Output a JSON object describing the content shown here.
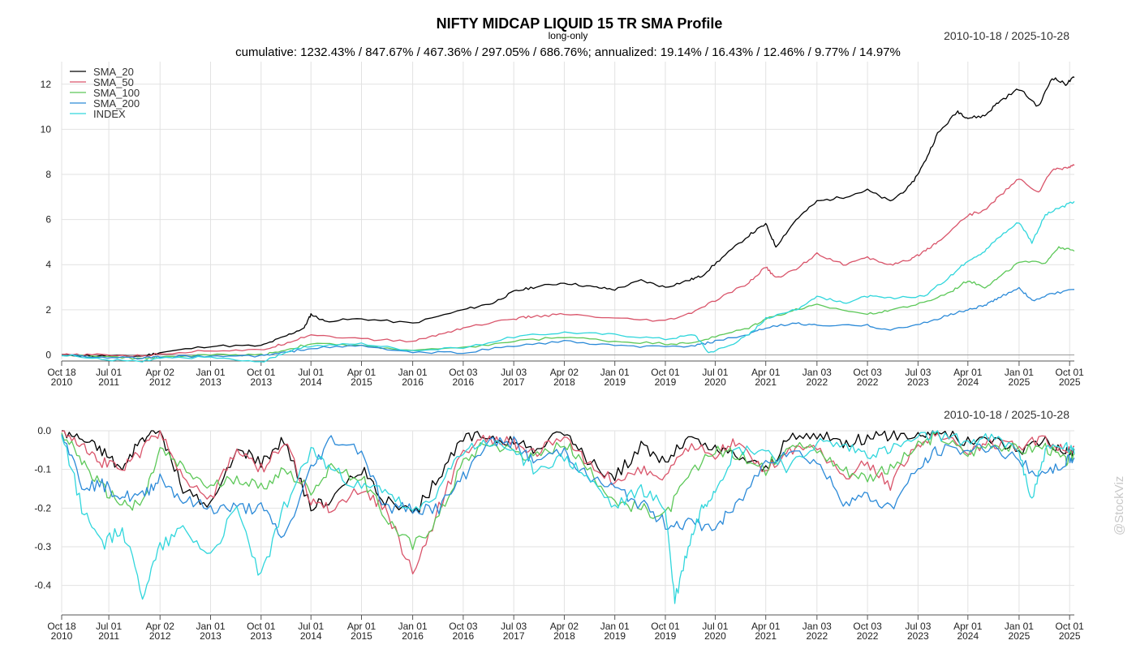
{
  "header": {
    "title": "NIFTY MIDCAP LIQUID 15 TR SMA Profile",
    "subtitle": "long-only",
    "stats": "cumulative: 1232.43% / 847.67% / 467.36% / 297.05% / 686.76%; annualized: 19.14% / 16.43% / 12.46% / 9.77% / 14.97%",
    "date_range_top": "2010-10-18 / 2025-10-28",
    "date_range_bottom": "2010-10-18 / 2025-10-28",
    "watermark": "@StockViz"
  },
  "x_ticks": [
    {
      "l1": "Oct 18",
      "l2": "2010",
      "t": 0.0
    },
    {
      "l1": "Jul 01",
      "l2": "2011",
      "t": 0.7
    },
    {
      "l1": "Apr 02",
      "l2": "2012",
      "t": 1.46
    },
    {
      "l1": "Jan 01",
      "l2": "2013",
      "t": 2.21
    },
    {
      "l1": "Oct 01",
      "l2": "2013",
      "t": 2.96
    },
    {
      "l1": "Jul 01",
      "l2": "2014",
      "t": 3.7
    },
    {
      "l1": "Apr 01",
      "l2": "2015",
      "t": 4.45
    },
    {
      "l1": "Jan 01",
      "l2": "2016",
      "t": 5.21
    },
    {
      "l1": "Oct 03",
      "l2": "2016",
      "t": 5.96
    },
    {
      "l1": "Jul 03",
      "l2": "2017",
      "t": 6.71
    },
    {
      "l1": "Apr 02",
      "l2": "2018",
      "t": 7.46
    },
    {
      "l1": "Jan 01",
      "l2": "2019",
      "t": 8.21
    },
    {
      "l1": "Oct 01",
      "l2": "2019",
      "t": 8.96
    },
    {
      "l1": "Jul 01",
      "l2": "2020",
      "t": 9.7
    },
    {
      "l1": "Apr 01",
      "l2": "2021",
      "t": 10.45
    },
    {
      "l1": "Jan 03",
      "l2": "2022",
      "t": 11.21
    },
    {
      "l1": "Oct 03",
      "l2": "2022",
      "t": 11.96
    },
    {
      "l1": "Jul 03",
      "l2": "2023",
      "t": 12.71
    },
    {
      "l1": "Apr 01",
      "l2": "2024",
      "t": 13.45
    },
    {
      "l1": "Jan 01",
      "l2": "2025",
      "t": 14.21
    },
    {
      "l1": "Oct 01",
      "l2": "2025",
      "t": 14.96
    }
  ],
  "chart_data": [
    {
      "type": "line",
      "title": "NIFTY MIDCAP LIQUID 15 TR SMA Profile",
      "subtitle": "long-only",
      "x_unit": "years since 2010-10-18",
      "ylim": [
        -0.2,
        13
      ],
      "y_ticks": [
        0,
        2,
        4,
        6,
        8,
        10,
        12
      ],
      "grid": true,
      "legend_position": "top-left",
      "series": [
        {
          "name": "SMA_20",
          "color": "#000000",
          "x": [
            0,
            0.6,
            1.2,
            1.46,
            2.21,
            2.96,
            3.3,
            3.6,
            3.7,
            3.9,
            4.45,
            5.21,
            5.96,
            6.4,
            6.71,
            7.0,
            7.46,
            7.9,
            8.21,
            8.6,
            8.96,
            9.3,
            9.5,
            9.8,
            10.2,
            10.45,
            10.6,
            10.9,
            11.21,
            11.6,
            11.96,
            12.3,
            12.6,
            12.8,
            13.0,
            13.3,
            13.45,
            13.7,
            13.9,
            14.21,
            14.5,
            14.7,
            14.9,
            15.03
          ],
          "y": [
            0,
            -0.05,
            -0.05,
            0.1,
            0.4,
            0.4,
            0.8,
            1.2,
            1.8,
            1.5,
            1.6,
            1.4,
            2.0,
            2.3,
            2.8,
            3.0,
            3.2,
            3.0,
            2.9,
            3.3,
            3.0,
            3.3,
            3.5,
            4.3,
            5.3,
            5.8,
            4.8,
            6.0,
            6.8,
            7.0,
            7.3,
            6.8,
            7.5,
            8.5,
            9.8,
            10.8,
            10.5,
            10.6,
            11.2,
            11.8,
            11.0,
            12.3,
            12.0,
            12.3
          ]
        },
        {
          "name": "SMA_50",
          "color": "#d9546a",
          "x": [
            0,
            0.6,
            1.2,
            1.46,
            2.21,
            2.96,
            3.3,
            3.7,
            4.45,
            5.21,
            5.6,
            5.96,
            6.71,
            7.0,
            7.46,
            8.21,
            8.96,
            9.3,
            9.7,
            10.2,
            10.45,
            10.6,
            10.9,
            11.21,
            11.6,
            11.96,
            12.3,
            12.6,
            12.8,
            13.0,
            13.45,
            13.7,
            13.9,
            14.21,
            14.5,
            14.7,
            14.9,
            15.03
          ],
          "y": [
            0,
            0,
            -0.05,
            0.05,
            0.2,
            0.2,
            0.5,
            0.9,
            0.7,
            0.6,
            0.9,
            1.2,
            1.6,
            1.7,
            1.8,
            1.6,
            1.5,
            1.8,
            2.4,
            3.2,
            3.9,
            3.4,
            3.8,
            4.5,
            4.0,
            4.3,
            4.0,
            4.2,
            4.6,
            5.0,
            6.2,
            6.4,
            7.0,
            7.8,
            7.2,
            8.2,
            8.3,
            8.4
          ]
        },
        {
          "name": "SMA_100",
          "color": "#5cc858",
          "x": [
            0,
            0.6,
            1.2,
            1.46,
            2.21,
            2.96,
            3.3,
            3.7,
            4.45,
            5.21,
            5.96,
            6.71,
            7.46,
            8.21,
            8.96,
            9.3,
            9.7,
            10.2,
            10.45,
            10.9,
            11.21,
            11.96,
            12.3,
            12.8,
            13.2,
            13.45,
            13.7,
            13.9,
            14.21,
            14.6,
            14.8,
            15.03
          ],
          "y": [
            0,
            -0.1,
            -0.15,
            -0.1,
            0.0,
            0.0,
            0.2,
            0.5,
            0.4,
            0.2,
            0.3,
            0.6,
            0.8,
            0.6,
            0.5,
            0.5,
            0.8,
            1.2,
            1.6,
            2.0,
            2.2,
            1.8,
            2.0,
            2.3,
            2.8,
            3.3,
            3.0,
            3.4,
            4.1,
            4.1,
            4.8,
            4.6
          ]
        },
        {
          "name": "SMA_200",
          "color": "#2b8ad8",
          "x": [
            0,
            0.6,
            1.2,
            1.46,
            2.21,
            2.96,
            3.3,
            3.7,
            4.45,
            5.21,
            5.96,
            6.71,
            7.46,
            8.21,
            8.96,
            9.4,
            9.7,
            10.2,
            10.45,
            10.9,
            11.21,
            11.96,
            12.3,
            12.8,
            13.2,
            13.45,
            13.7,
            13.9,
            14.21,
            14.4,
            14.7,
            15.03
          ],
          "y": [
            0,
            -0.1,
            -0.15,
            -0.1,
            -0.05,
            -0.05,
            0.1,
            0.3,
            0.4,
            0.1,
            0.1,
            0.4,
            0.6,
            0.4,
            0.35,
            0.4,
            0.6,
            0.9,
            1.2,
            1.4,
            1.3,
            1.3,
            1.1,
            1.4,
            1.8,
            2.0,
            2.2,
            2.5,
            3.0,
            2.4,
            2.7,
            2.9
          ]
        },
        {
          "name": "INDEX",
          "color": "#30d6dc",
          "x": [
            0,
            0.6,
            1.2,
            1.46,
            2.21,
            2.96,
            3.3,
            3.7,
            4.45,
            5.21,
            5.96,
            6.71,
            7.46,
            8.21,
            8.96,
            9.4,
            9.6,
            9.9,
            10.2,
            10.45,
            10.9,
            11.21,
            11.6,
            11.96,
            12.3,
            12.8,
            13.2,
            13.45,
            13.7,
            13.9,
            14.21,
            14.4,
            14.6,
            14.8,
            15.03
          ],
          "y": [
            0,
            -0.2,
            -0.3,
            -0.15,
            -0.1,
            -0.35,
            0.1,
            0.4,
            0.5,
            0.2,
            0.3,
            0.8,
            1.0,
            0.9,
            0.7,
            0.9,
            0.1,
            0.4,
            0.9,
            1.6,
            2.0,
            2.6,
            2.3,
            2.6,
            2.5,
            2.6,
            3.5,
            4.2,
            4.6,
            5.2,
            5.9,
            5.0,
            6.2,
            6.5,
            6.8
          ]
        }
      ]
    },
    {
      "type": "line",
      "title": "",
      "x_unit": "years since 2010-10-18",
      "ylim": [
        -0.47,
        0.0
      ],
      "y_ticks": [
        0.0,
        -0.1,
        -0.2,
        -0.3,
        -0.4
      ],
      "y_tick_labels": [
        "0.0",
        "-0.1",
        "-0.2",
        "-0.3",
        "-0.4"
      ],
      "grid": true,
      "series": [
        {
          "name": "SMA_20",
          "color": "#000000",
          "x": [
            0,
            0.3,
            0.6,
            0.9,
            1.2,
            1.46,
            1.8,
            2.21,
            2.6,
            2.96,
            3.3,
            3.7,
            4.0,
            4.45,
            4.8,
            5.21,
            5.6,
            5.96,
            6.3,
            6.71,
            7.0,
            7.46,
            7.8,
            8.21,
            8.6,
            8.96,
            9.3,
            9.7,
            10.0,
            10.45,
            10.8,
            11.21,
            11.6,
            11.96,
            12.3,
            12.71,
            13.0,
            13.45,
            13.8,
            14.21,
            14.6,
            14.9,
            15.03
          ],
          "y": [
            0,
            -0.02,
            -0.05,
            -0.1,
            -0.02,
            0,
            -0.15,
            -0.2,
            -0.05,
            -0.08,
            -0.02,
            -0.2,
            -0.18,
            -0.1,
            -0.18,
            -0.22,
            -0.12,
            -0.02,
            -0.01,
            -0.03,
            -0.05,
            0,
            -0.08,
            -0.12,
            -0.04,
            -0.08,
            -0.02,
            -0.05,
            -0.06,
            -0.1,
            -0.02,
            -0.01,
            -0.03,
            -0.02,
            -0.01,
            -0.01,
            0,
            -0.03,
            -0.02,
            -0.05,
            -0.02,
            -0.06,
            -0.05
          ]
        },
        {
          "name": "SMA_50",
          "color": "#d9546a",
          "x": [
            0,
            0.3,
            0.6,
            0.9,
            1.2,
            1.46,
            1.8,
            2.21,
            2.6,
            2.96,
            3.3,
            3.7,
            4.0,
            4.45,
            4.8,
            5.21,
            5.6,
            5.96,
            6.3,
            6.71,
            7.0,
            7.46,
            7.8,
            8.21,
            8.6,
            8.96,
            9.3,
            9.7,
            10.0,
            10.45,
            10.8,
            11.21,
            11.6,
            11.96,
            12.3,
            12.71,
            13.0,
            13.45,
            13.8,
            14.21,
            14.6,
            14.9,
            15.03
          ],
          "y": [
            0,
            -0.03,
            -0.08,
            -0.1,
            -0.05,
            0,
            -0.12,
            -0.18,
            -0.05,
            -0.1,
            -0.03,
            -0.18,
            -0.2,
            -0.15,
            -0.2,
            -0.37,
            -0.2,
            -0.05,
            -0.02,
            -0.03,
            -0.06,
            -0.02,
            -0.08,
            -0.13,
            -0.1,
            -0.12,
            -0.04,
            -0.06,
            -0.03,
            -0.1,
            -0.05,
            -0.04,
            -0.12,
            -0.08,
            -0.14,
            -0.03,
            -0.01,
            -0.05,
            -0.03,
            -0.04,
            -0.02,
            -0.06,
            -0.04
          ]
        },
        {
          "name": "SMA_100",
          "color": "#5cc858",
          "x": [
            0,
            0.3,
            0.6,
            0.9,
            1.2,
            1.46,
            1.8,
            2.21,
            2.6,
            2.96,
            3.3,
            3.7,
            4.0,
            4.45,
            4.8,
            5.21,
            5.6,
            5.96,
            6.3,
            6.71,
            7.0,
            7.46,
            7.8,
            8.21,
            8.6,
            8.96,
            9.3,
            9.7,
            10.0,
            10.45,
            10.8,
            11.21,
            11.6,
            11.96,
            12.3,
            12.71,
            13.0,
            13.45,
            13.8,
            14.21,
            14.6,
            14.9,
            15.03
          ],
          "y": [
            0,
            -0.08,
            -0.15,
            -0.19,
            -0.19,
            -0.05,
            -0.1,
            -0.15,
            -0.12,
            -0.15,
            -0.1,
            -0.15,
            -0.1,
            -0.12,
            -0.22,
            -0.3,
            -0.22,
            -0.08,
            -0.03,
            -0.05,
            -0.07,
            -0.03,
            -0.1,
            -0.18,
            -0.2,
            -0.22,
            -0.12,
            -0.05,
            -0.06,
            -0.1,
            -0.03,
            -0.05,
            -0.1,
            -0.12,
            -0.1,
            -0.04,
            -0.01,
            -0.06,
            -0.03,
            -0.05,
            -0.04,
            -0.08,
            -0.06
          ]
        },
        {
          "name": "SMA_200",
          "color": "#2b8ad8",
          "x": [
            0,
            0.3,
            0.6,
            0.9,
            1.2,
            1.46,
            1.8,
            2.21,
            2.6,
            2.96,
            3.3,
            3.7,
            4.0,
            4.45,
            4.8,
            5.21,
            5.6,
            5.96,
            6.3,
            6.71,
            7.0,
            7.46,
            7.8,
            8.21,
            8.6,
            8.96,
            9.3,
            9.7,
            10.0,
            10.45,
            10.8,
            11.21,
            11.6,
            11.96,
            12.3,
            12.71,
            13.0,
            13.45,
            13.8,
            14.21,
            14.6,
            14.9,
            15.03
          ],
          "y": [
            0,
            -0.14,
            -0.14,
            -0.17,
            -0.17,
            -0.12,
            -0.18,
            -0.2,
            -0.2,
            -0.2,
            -0.28,
            -0.1,
            -0.02,
            -0.05,
            -0.2,
            -0.2,
            -0.2,
            -0.12,
            -0.03,
            -0.03,
            -0.08,
            -0.05,
            -0.12,
            -0.15,
            -0.19,
            -0.24,
            -0.24,
            -0.25,
            -0.2,
            -0.08,
            -0.05,
            -0.08,
            -0.18,
            -0.17,
            -0.2,
            -0.1,
            -0.05,
            -0.05,
            -0.04,
            -0.08,
            -0.12,
            -0.08,
            -0.07
          ]
        },
        {
          "name": "INDEX",
          "color": "#30d6dc",
          "x": [
            0,
            0.3,
            0.6,
            0.9,
            1.2,
            1.46,
            1.8,
            2.21,
            2.6,
            2.96,
            3.3,
            3.7,
            4.0,
            4.45,
            4.8,
            5.21,
            5.6,
            5.96,
            6.3,
            6.71,
            7.0,
            7.46,
            7.8,
            8.21,
            8.6,
            8.96,
            9.1,
            9.3,
            9.5,
            9.7,
            10.0,
            10.45,
            10.8,
            11.21,
            11.6,
            11.96,
            12.3,
            12.71,
            13.0,
            13.45,
            13.8,
            14.21,
            14.4,
            14.6,
            14.9,
            15.03
          ],
          "y": [
            0,
            -0.2,
            -0.3,
            -0.25,
            -0.42,
            -0.3,
            -0.25,
            -0.32,
            -0.2,
            -0.38,
            -0.2,
            -0.05,
            -0.1,
            -0.15,
            -0.15,
            -0.22,
            -0.15,
            -0.05,
            -0.03,
            -0.05,
            -0.1,
            -0.07,
            -0.12,
            -0.2,
            -0.15,
            -0.2,
            -0.44,
            -0.3,
            -0.2,
            -0.15,
            -0.05,
            -0.05,
            -0.1,
            -0.03,
            -0.04,
            -0.06,
            -0.05,
            -0.02,
            -0.01,
            -0.03,
            -0.02,
            -0.05,
            -0.18,
            -0.05,
            -0.04,
            -0.06
          ]
        }
      ]
    }
  ]
}
